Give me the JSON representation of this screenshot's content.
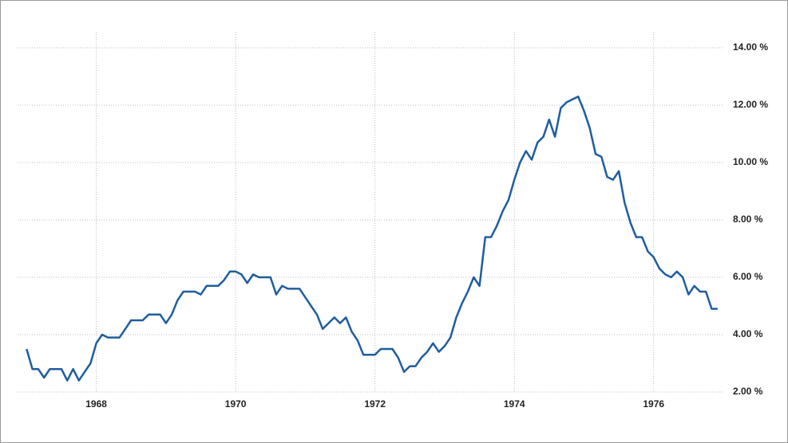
{
  "chart_data": {
    "type": "line",
    "x": [
      1967.0,
      1967.083,
      1967.167,
      1967.25,
      1967.333,
      1967.417,
      1967.5,
      1967.583,
      1967.667,
      1967.75,
      1967.833,
      1967.917,
      1968.0,
      1968.083,
      1968.167,
      1968.25,
      1968.333,
      1968.417,
      1968.5,
      1968.583,
      1968.667,
      1968.75,
      1968.833,
      1968.917,
      1969.0,
      1969.083,
      1969.167,
      1969.25,
      1969.333,
      1969.417,
      1969.5,
      1969.583,
      1969.667,
      1969.75,
      1969.833,
      1969.917,
      1970.0,
      1970.083,
      1970.167,
      1970.25,
      1970.333,
      1970.417,
      1970.5,
      1970.583,
      1970.667,
      1970.75,
      1970.833,
      1970.917,
      1971.0,
      1971.083,
      1971.167,
      1971.25,
      1971.333,
      1971.417,
      1971.5,
      1971.583,
      1971.667,
      1971.75,
      1971.833,
      1971.917,
      1972.0,
      1972.083,
      1972.167,
      1972.25,
      1972.333,
      1972.417,
      1972.5,
      1972.583,
      1972.667,
      1972.75,
      1972.833,
      1972.917,
      1973.0,
      1973.083,
      1973.167,
      1973.25,
      1973.333,
      1973.417,
      1973.5,
      1973.583,
      1973.667,
      1973.75,
      1973.833,
      1973.917,
      1974.0,
      1974.083,
      1974.167,
      1974.25,
      1974.333,
      1974.417,
      1974.5,
      1974.583,
      1974.667,
      1974.75,
      1974.833,
      1974.917,
      1975.0,
      1975.083,
      1975.167,
      1975.25,
      1975.333,
      1975.417,
      1975.5,
      1975.583,
      1975.667,
      1975.75,
      1975.833,
      1975.917,
      1976.0,
      1976.083,
      1976.167,
      1976.25,
      1976.333,
      1976.417,
      1976.5,
      1976.583,
      1976.667,
      1976.75,
      1976.833,
      1976.917
    ],
    "values": [
      3.5,
      2.8,
      2.8,
      2.5,
      2.8,
      2.8,
      2.8,
      2.4,
      2.8,
      2.4,
      2.7,
      3.0,
      3.7,
      4.0,
      3.9,
      3.9,
      3.9,
      4.2,
      4.5,
      4.5,
      4.5,
      4.7,
      4.7,
      4.7,
      4.4,
      4.7,
      5.2,
      5.5,
      5.5,
      5.5,
      5.4,
      5.7,
      5.7,
      5.7,
      5.9,
      6.2,
      6.2,
      6.1,
      5.8,
      6.1,
      6.0,
      6.0,
      6.0,
      5.4,
      5.7,
      5.6,
      5.6,
      5.6,
      5.3,
      5.0,
      4.7,
      4.2,
      4.4,
      4.6,
      4.4,
      4.6,
      4.1,
      3.8,
      3.3,
      3.3,
      3.3,
      3.5,
      3.5,
      3.5,
      3.2,
      2.7,
      2.9,
      2.9,
      3.2,
      3.4,
      3.7,
      3.4,
      3.6,
      3.9,
      4.6,
      5.1,
      5.5,
      6.0,
      5.7,
      7.4,
      7.4,
      7.8,
      8.3,
      8.7,
      9.4,
      10.0,
      10.4,
      10.1,
      10.7,
      10.9,
      11.5,
      10.9,
      11.9,
      12.1,
      12.2,
      12.3,
      11.8,
      11.2,
      10.3,
      10.2,
      9.5,
      9.4,
      9.7,
      8.6,
      7.9,
      7.4,
      7.4,
      6.9,
      6.7,
      6.3,
      6.1,
      6.0,
      6.2,
      6.0,
      5.4,
      5.7,
      5.5,
      5.5,
      4.9,
      4.9
    ],
    "color": "#1f5d9e",
    "xlim": [
      1966.87,
      1977.0
    ],
    "xticks": [
      1968,
      1970,
      1972,
      1974,
      1976
    ],
    "ylim": [
      2,
      14
    ],
    "yticks": [
      {
        "value": 2,
        "label": "2.00 %"
      },
      {
        "value": 4,
        "label": "4.00 %"
      },
      {
        "value": 6,
        "label": "6.00 %"
      },
      {
        "value": 8,
        "label": "8.00 %"
      },
      {
        "value": 10,
        "label": "10.00 %"
      },
      {
        "value": 12,
        "label": "12.00 %"
      },
      {
        "value": 14,
        "label": "14.00 %"
      }
    ],
    "grid": true
  }
}
